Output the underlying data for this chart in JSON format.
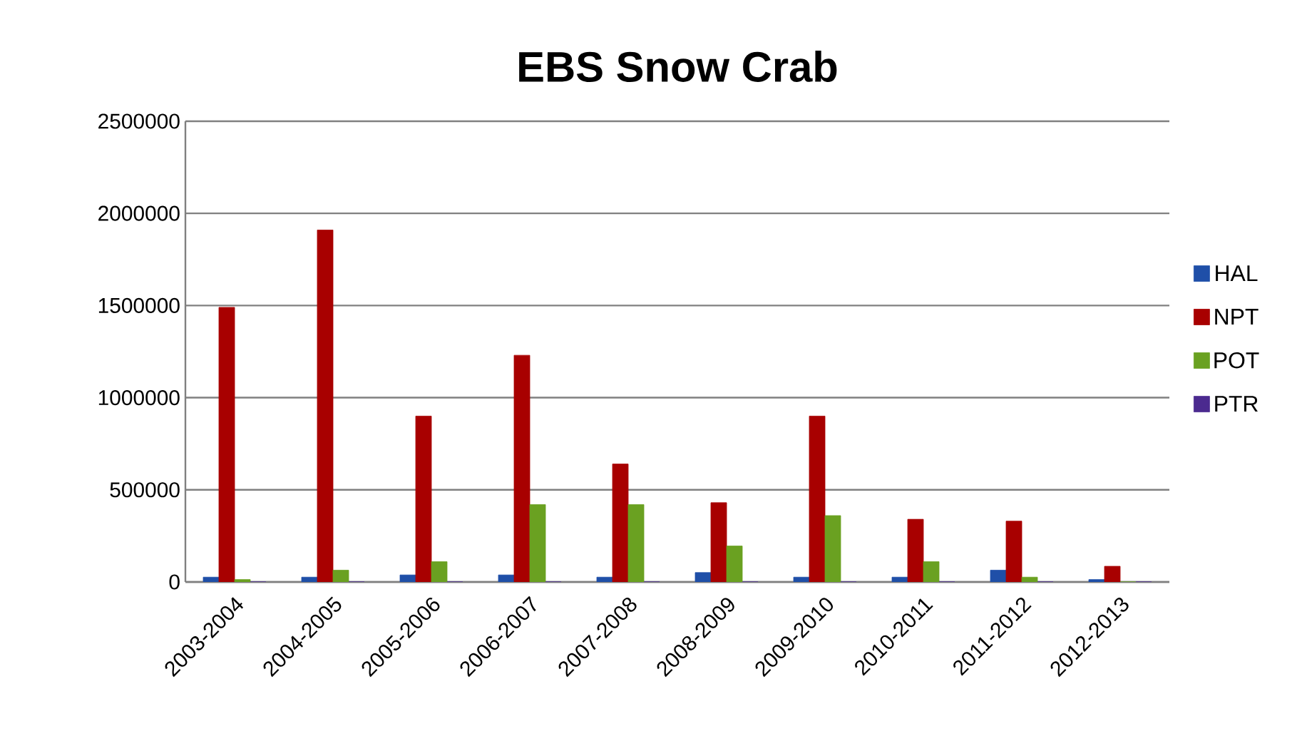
{
  "chart_data": {
    "type": "bar",
    "title": "EBS Snow Crab",
    "categories": [
      "2003-2004",
      "2004-2005",
      "2005-2006",
      "2006-2007",
      "2007-2008",
      "2008-2009",
      "2009-2010",
      "2010-2011",
      "2011-2012",
      "2012-2013"
    ],
    "series": [
      {
        "name": "HAL",
        "color": "#1f4fa8",
        "values": [
          26000,
          26000,
          38000,
          38000,
          26000,
          51000,
          26000,
          26000,
          64000,
          13000
        ]
      },
      {
        "name": "NPT",
        "color": "#a80000",
        "values": [
          1490000,
          1910000,
          900000,
          1230000,
          640000,
          430000,
          900000,
          340000,
          330000,
          85000
        ]
      },
      {
        "name": "POT",
        "color": "#6aa121",
        "values": [
          13000,
          64000,
          110000,
          420000,
          420000,
          195000,
          360000,
          110000,
          26000,
          0
        ]
      },
      {
        "name": "PTR",
        "color": "#4b2a8f",
        "values": [
          0,
          0,
          0,
          0,
          0,
          0,
          0,
          0,
          0,
          0
        ]
      }
    ],
    "ylim": [
      0,
      2500000
    ],
    "yticks": [
      0,
      500000,
      1000000,
      1500000,
      2000000,
      2500000
    ],
    "grid": "y",
    "legend": "right"
  }
}
